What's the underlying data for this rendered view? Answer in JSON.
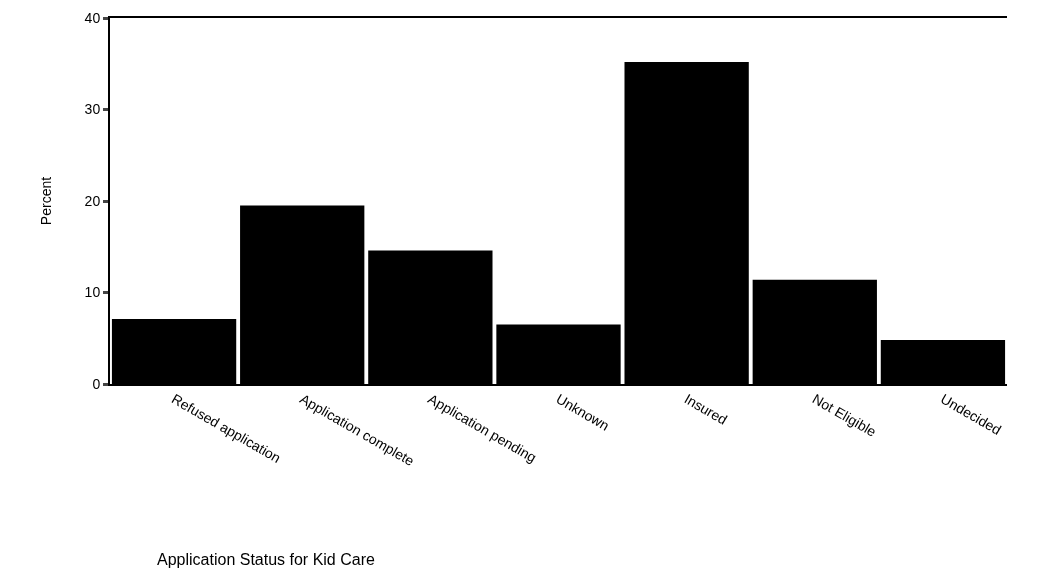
{
  "chart_data": {
    "type": "bar",
    "ylabel": "Percent",
    "annotations": [
      "Application Status for Kid Care"
    ],
    "categories": [
      "Refused application",
      "Application complete",
      "Application pending",
      "Unknown",
      "Insured",
      "Not Eligible",
      "Undecided"
    ],
    "values": [
      7.1,
      19.5,
      14.6,
      6.5,
      35.2,
      11.4,
      4.8
    ],
    "color": "#000000",
    "ylim": [
      0,
      40
    ],
    "yticks": [
      0,
      10,
      20,
      30,
      40
    ],
    "grid": false
  }
}
